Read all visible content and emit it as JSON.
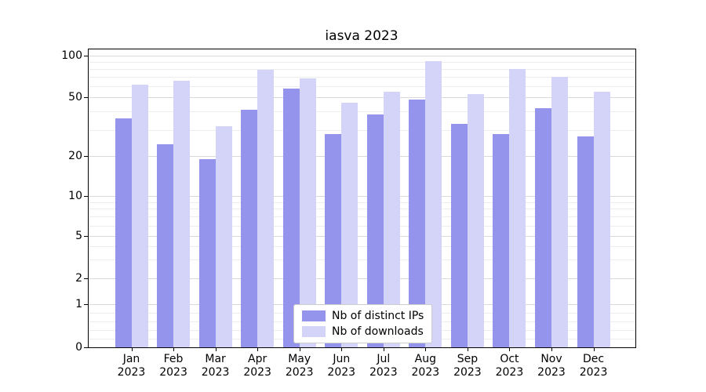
{
  "chart_data": {
    "type": "bar",
    "title": "iasva 2023",
    "year": "2023",
    "categories": [
      "Jan",
      "Feb",
      "Mar",
      "Apr",
      "May",
      "Jun",
      "Jul",
      "Aug",
      "Sep",
      "Oct",
      "Nov",
      "Dec"
    ],
    "series": [
      {
        "name": "Nb of distinct IPs",
        "color": "#9494ec",
        "values": [
          36,
          24,
          19,
          41,
          58,
          28,
          38,
          48,
          33,
          28,
          42,
          27
        ]
      },
      {
        "name": "Nb of downloads",
        "color": "#d4d4f8",
        "values": [
          62,
          66,
          32,
          79,
          68,
          46,
          55,
          91,
          53,
          80,
          70,
          55
        ]
      }
    ],
    "yscale": "symlog",
    "yticks": [
      0,
      1,
      2,
      5,
      10,
      20,
      50,
      100
    ],
    "ylim": [
      0,
      110
    ],
    "grid": true,
    "legend_position": "lower center"
  },
  "colors": {
    "axis": "#000000",
    "grid_major": "#d9d9d9",
    "grid_minor": "#ededed",
    "legend_border": "#cccccc",
    "background": "#ffffff"
  }
}
